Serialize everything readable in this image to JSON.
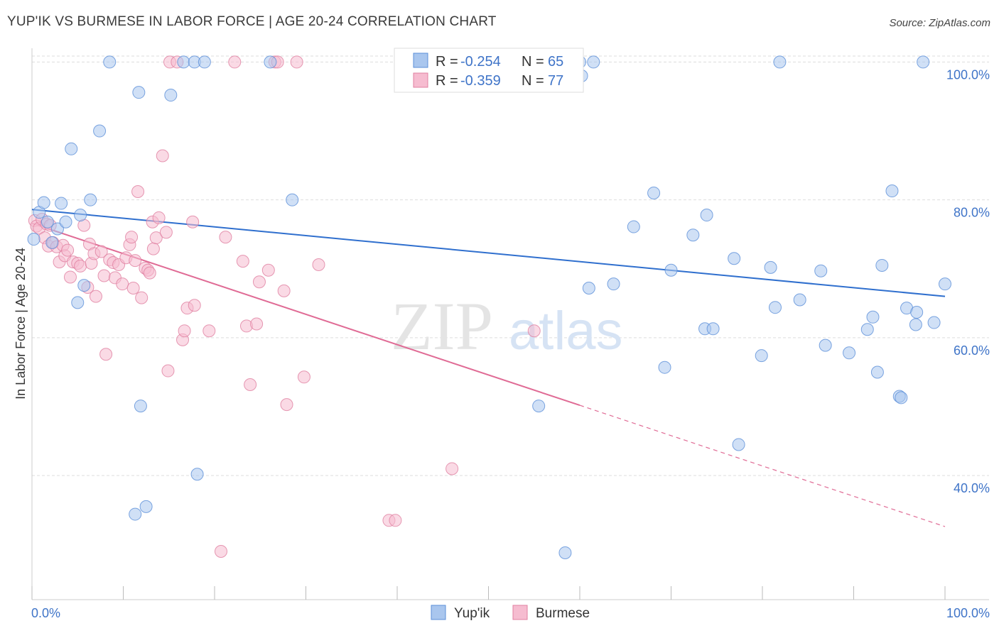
{
  "header": {
    "title": "YUP'IK VS BURMESE IN LABOR FORCE | AGE 20-24 CORRELATION CHART",
    "source": "Source: ZipAtlas.com"
  },
  "colors": {
    "blue": "#5b8fd8",
    "blue_fill": "#a9c6ee",
    "blue_line": "#2f6fce",
    "pink": "#e07fa0",
    "pink_fill": "#f6bcd0",
    "pink_line": "#e06b95",
    "axis_text": "#3f74c8",
    "grid": "#dddddd"
  },
  "legend": {
    "rows": [
      {
        "r_label": "R =",
        "r_value": "-0.254",
        "n_label": "N =",
        "n_value": "65"
      },
      {
        "r_label": "R =",
        "r_value": "-0.359",
        "n_label": "N =",
        "n_value": "77"
      }
    ]
  },
  "bottom_legend": [
    "Yup'ik",
    "Burmese"
  ],
  "watermark": {
    "zip": "ZIP",
    "atlas": "atlas"
  },
  "chart_data": {
    "type": "scatter",
    "ylabel": "In Labor Force | Age 20-24",
    "xlim": [
      0,
      100
    ],
    "ylim": [
      22,
      102
    ],
    "x_tick_labels": [
      "0.0%",
      "100.0%"
    ],
    "y_ticks": [
      40,
      60,
      80,
      100
    ],
    "y_tick_labels": [
      "40.0%",
      "60.0%",
      "80.0%",
      "100.0%"
    ],
    "series": [
      {
        "name": "Yup'ik",
        "trend": {
          "x": [
            0,
            100
          ],
          "y": [
            78.6,
            66.0
          ]
        },
        "points": [
          [
            0.2,
            74.3
          ],
          [
            0.8,
            78.2
          ],
          [
            1.3,
            79.6
          ],
          [
            1.7,
            76.8
          ],
          [
            2.2,
            73.8
          ],
          [
            2.8,
            75.8
          ],
          [
            3.2,
            79.5
          ],
          [
            3.7,
            76.8
          ],
          [
            4.3,
            87.4
          ],
          [
            5.0,
            65.1
          ],
          [
            5.3,
            77.8
          ],
          [
            5.7,
            67.6
          ],
          [
            6.4,
            80.0
          ],
          [
            7.4,
            90.0
          ],
          [
            8.5,
            100.0
          ],
          [
            11.3,
            34.4
          ],
          [
            11.7,
            95.6
          ],
          [
            12.5,
            35.5
          ],
          [
            11.9,
            50.1
          ],
          [
            15.2,
            95.2
          ],
          [
            16.6,
            100.0
          ],
          [
            17.8,
            100.0
          ],
          [
            18.1,
            40.2
          ],
          [
            18.9,
            100.0
          ],
          [
            26.1,
            100.0
          ],
          [
            28.5,
            80.0
          ],
          [
            49.5,
            100.0
          ],
          [
            55.5,
            50.1
          ],
          [
            58.4,
            28.8
          ],
          [
            60.0,
            100.0
          ],
          [
            60.2,
            98.0
          ],
          [
            61.0,
            67.2
          ],
          [
            61.5,
            100.0
          ],
          [
            63.7,
            67.8
          ],
          [
            65.9,
            76.1
          ],
          [
            69.3,
            55.7
          ],
          [
            68.1,
            81.0
          ],
          [
            70.0,
            69.8
          ],
          [
            72.4,
            74.9
          ],
          [
            73.7,
            61.3
          ],
          [
            73.9,
            77.8
          ],
          [
            74.6,
            61.3
          ],
          [
            76.9,
            71.5
          ],
          [
            77.4,
            44.5
          ],
          [
            79.9,
            57.4
          ],
          [
            80.9,
            70.2
          ],
          [
            81.4,
            64.4
          ],
          [
            81.9,
            100.0
          ],
          [
            84.1,
            65.5
          ],
          [
            86.4,
            69.7
          ],
          [
            86.9,
            58.9
          ],
          [
            89.5,
            57.8
          ],
          [
            91.5,
            61.2
          ],
          [
            92.1,
            63.0
          ],
          [
            92.6,
            55.0
          ],
          [
            93.1,
            70.5
          ],
          [
            94.2,
            81.3
          ],
          [
            95.0,
            51.5
          ],
          [
            95.2,
            51.3
          ],
          [
            95.8,
            64.3
          ],
          [
            96.9,
            63.7
          ],
          [
            96.8,
            61.9
          ],
          [
            97.6,
            100.0
          ],
          [
            98.8,
            62.2
          ],
          [
            100.0,
            67.8
          ]
        ]
      },
      {
        "name": "Burmese",
        "trend": {
          "x": [
            0,
            60
          ],
          "y": [
            76.6,
            50.2
          ]
        },
        "trend_dashed": {
          "x": [
            60,
            100
          ],
          "y": [
            50.2,
            32.6
          ]
        },
        "points": [
          [
            0.3,
            77.0
          ],
          [
            0.5,
            76.2
          ],
          [
            0.8,
            75.9
          ],
          [
            1.1,
            77.2
          ],
          [
            1.4,
            74.5
          ],
          [
            1.6,
            76.5
          ],
          [
            1.8,
            73.3
          ],
          [
            2.0,
            76.3
          ],
          [
            2.3,
            73.8
          ],
          [
            2.7,
            73.2
          ],
          [
            3.0,
            71.0
          ],
          [
            3.4,
            73.4
          ],
          [
            3.6,
            71.9
          ],
          [
            3.9,
            72.7
          ],
          [
            4.2,
            68.8
          ],
          [
            4.5,
            71.0
          ],
          [
            5.0,
            70.8
          ],
          [
            5.3,
            70.4
          ],
          [
            5.7,
            76.3
          ],
          [
            6.1,
            67.3
          ],
          [
            6.3,
            73.6
          ],
          [
            6.5,
            70.8
          ],
          [
            6.8,
            72.2
          ],
          [
            7.0,
            66.0
          ],
          [
            7.6,
            72.5
          ],
          [
            7.9,
            69.0
          ],
          [
            8.1,
            57.6
          ],
          [
            8.5,
            71.3
          ],
          [
            8.9,
            70.9
          ],
          [
            9.1,
            68.7
          ],
          [
            9.5,
            70.6
          ],
          [
            9.9,
            67.8
          ],
          [
            10.3,
            71.6
          ],
          [
            10.7,
            73.5
          ],
          [
            10.9,
            74.6
          ],
          [
            11.1,
            67.2
          ],
          [
            11.3,
            71.2
          ],
          [
            11.6,
            81.2
          ],
          [
            12.0,
            65.8
          ],
          [
            12.4,
            70.1
          ],
          [
            12.7,
            69.8
          ],
          [
            12.9,
            69.4
          ],
          [
            13.2,
            76.8
          ],
          [
            13.3,
            72.9
          ],
          [
            13.6,
            74.5
          ],
          [
            13.9,
            77.4
          ],
          [
            14.3,
            86.4
          ],
          [
            14.7,
            75.3
          ],
          [
            14.9,
            55.2
          ],
          [
            15.1,
            100.0
          ],
          [
            15.9,
            100.0
          ],
          [
            16.5,
            59.7
          ],
          [
            16.7,
            61.0
          ],
          [
            17.0,
            64.3
          ],
          [
            17.6,
            76.8
          ],
          [
            17.8,
            64.7
          ],
          [
            19.4,
            61.0
          ],
          [
            20.7,
            29.0
          ],
          [
            21.2,
            74.6
          ],
          [
            22.2,
            100.0
          ],
          [
            23.1,
            71.1
          ],
          [
            23.5,
            61.7
          ],
          [
            23.9,
            53.2
          ],
          [
            24.6,
            62.0
          ],
          [
            24.9,
            68.1
          ],
          [
            25.9,
            69.8
          ],
          [
            26.6,
            100.0
          ],
          [
            26.9,
            100.0
          ],
          [
            27.6,
            66.8
          ],
          [
            27.9,
            50.3
          ],
          [
            29.0,
            100.0
          ],
          [
            29.8,
            54.3
          ],
          [
            31.4,
            70.6
          ],
          [
            39.1,
            33.5
          ],
          [
            39.8,
            33.5
          ],
          [
            46.0,
            41.0
          ],
          [
            55.0,
            61.0
          ]
        ]
      }
    ]
  }
}
